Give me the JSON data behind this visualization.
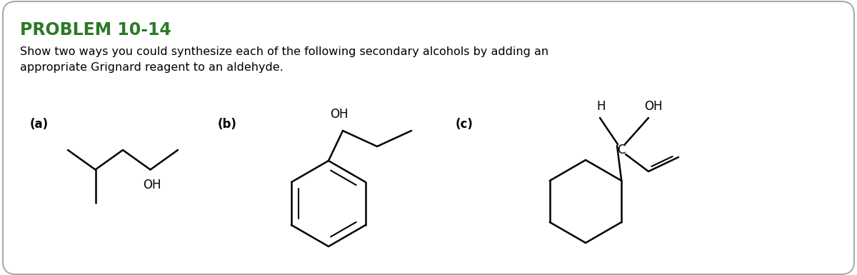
{
  "title": "PROBLEM 10-14",
  "title_color": "#2d7a27",
  "body_text": "Show two ways you could synthesize each of the following secondary alcohols by adding an\nappropriate Grignard reagent to an aldehyde.",
  "background_color": "#ffffff",
  "border_color": "#aaaaaa",
  "label_a": "(a)",
  "label_b": "(b)",
  "label_c": "(c)",
  "font_color": "#000000"
}
